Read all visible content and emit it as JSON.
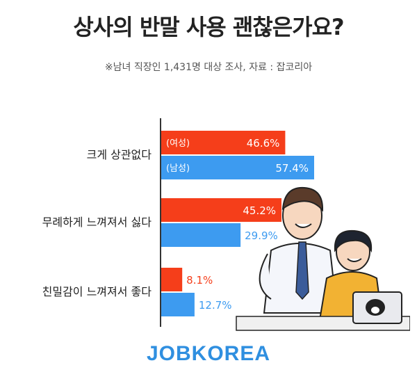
{
  "title": "상사의 반말 사용 괜찮은가요?",
  "subtitle": "※남녀 직장인 1,431명 대상 조사, 자료 : 잡코리아",
  "brand": "JOBKOREA",
  "colors": {
    "female": "#f53e1a",
    "male": "#3d9bf0",
    "axis": "#333333"
  },
  "chart_data": {
    "type": "bar",
    "orientation": "horizontal",
    "categories": [
      "크게 상관없다",
      "무례하게 느껴져서 싫다",
      "친밀감이 느껴져서 좋다"
    ],
    "series": [
      {
        "name": "(여성)",
        "values": [
          46.6,
          45.2,
          8.1
        ]
      },
      {
        "name": "(남성)",
        "values": [
          57.4,
          29.9,
          12.7
        ]
      }
    ],
    "value_labels": [
      [
        "46.6%",
        "45.2%",
        "8.1%"
      ],
      [
        "57.4%",
        "29.9%",
        "12.7%"
      ]
    ],
    "legend": "inside-first-bars",
    "xlim": [
      0,
      60
    ],
    "grid": false
  }
}
